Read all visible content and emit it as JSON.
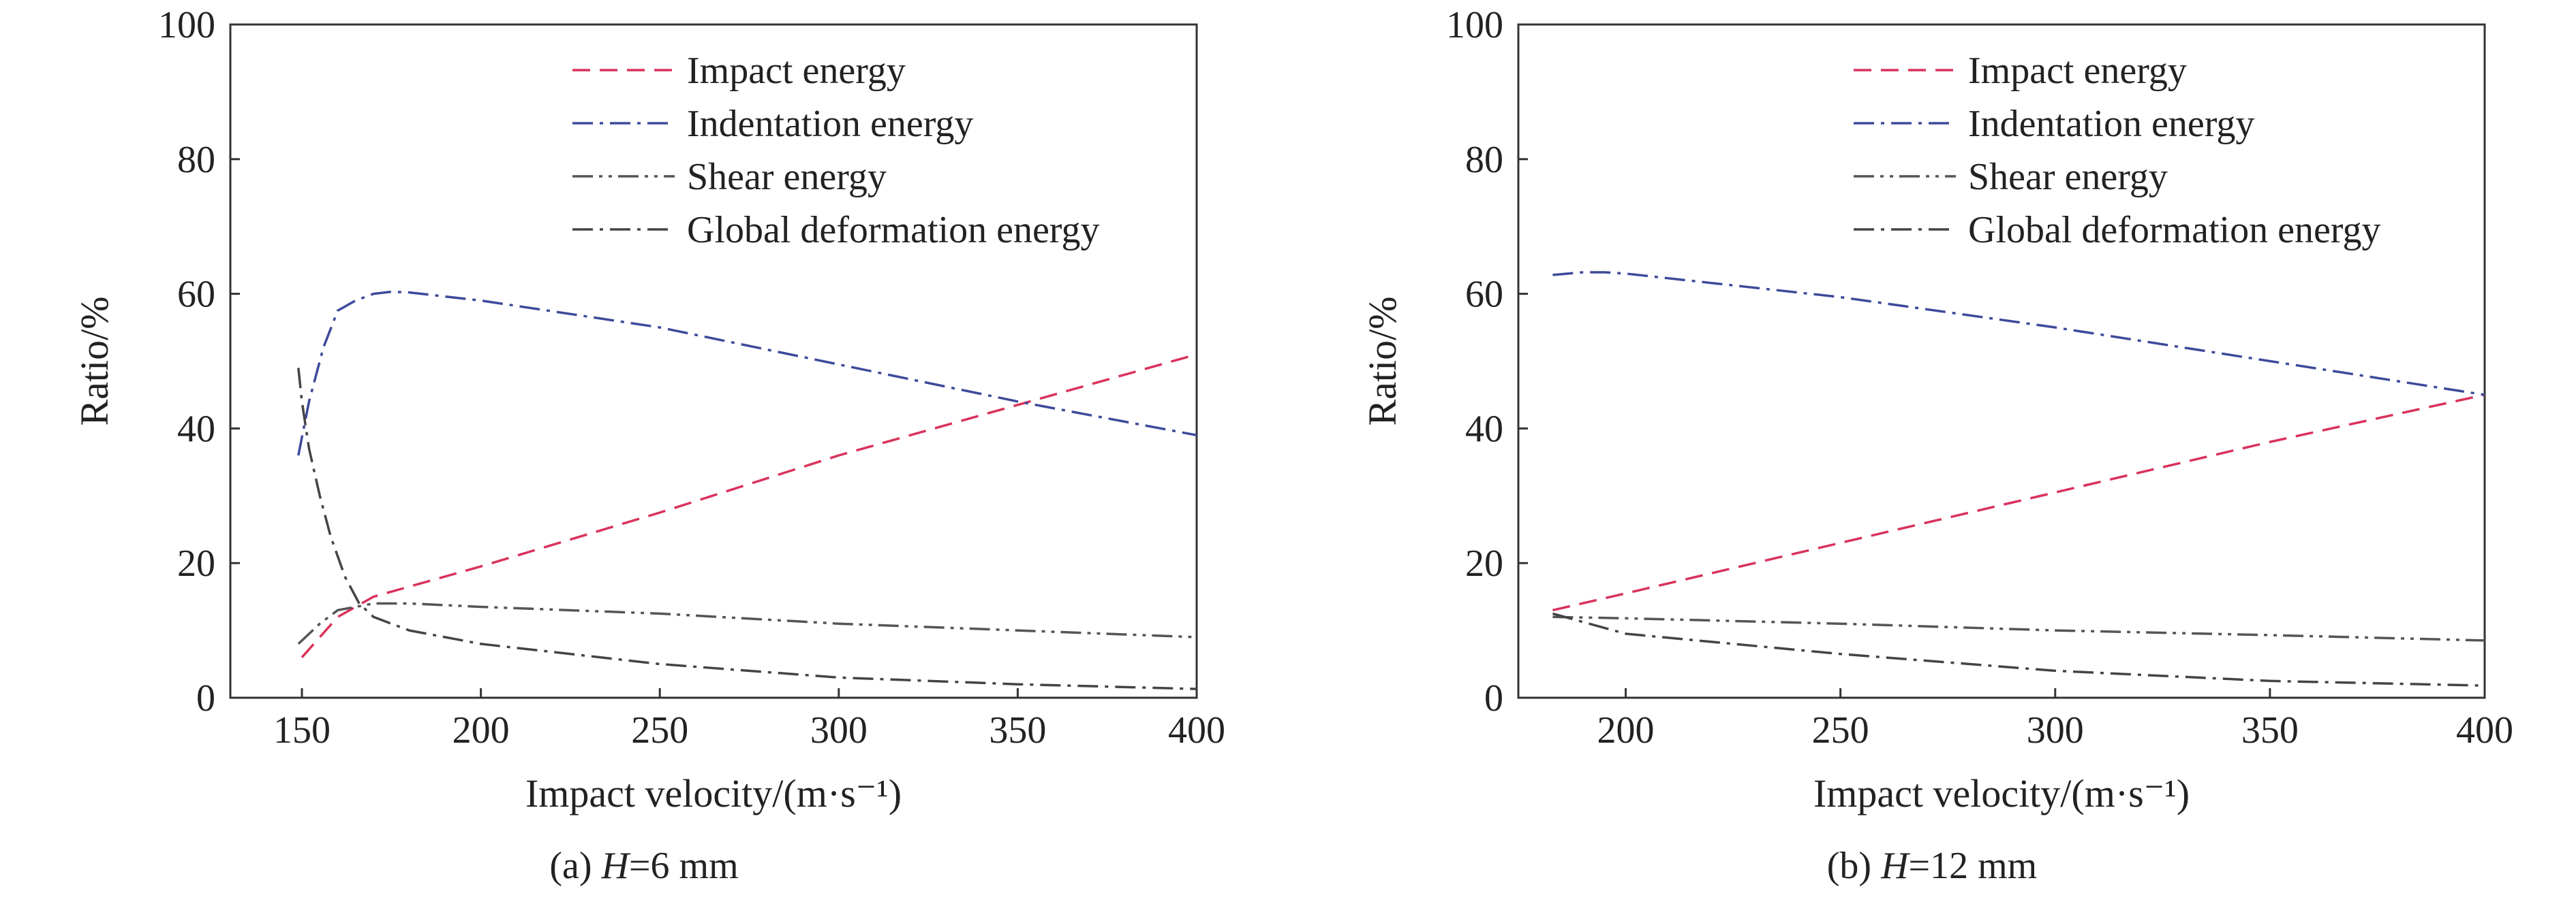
{
  "chart_data": [
    {
      "type": "line",
      "caption_prefix": "(a) ",
      "caption_var": "H",
      "caption_rest": "=6 mm",
      "xlabel": "Impact velocity/(m·s⁻¹)",
      "ylabel": "Ratio/%",
      "xlim": [
        130,
        400
      ],
      "ylim": [
        0,
        100
      ],
      "xticks": [
        150,
        200,
        250,
        300,
        350,
        400
      ],
      "yticks": [
        0,
        20,
        40,
        60,
        80,
        100
      ],
      "grid": false,
      "legend_position": "top-right",
      "series": [
        {
          "name": "Impact energy",
          "color": "#d9325a",
          "dash": "dashed",
          "x": [
            150,
            160,
            170,
            200,
            250,
            300,
            350,
            400
          ],
          "y": [
            6,
            12,
            15,
            19.5,
            27.5,
            36,
            43.5,
            51
          ]
        },
        {
          "name": "Indentation energy",
          "color": "#3d4a9a",
          "dash": "dashdot",
          "x": [
            149,
            152,
            156,
            160,
            165,
            170,
            175,
            180,
            200,
            250,
            300,
            350,
            400
          ],
          "y": [
            36,
            44,
            52,
            57.5,
            59,
            60,
            60.3,
            60.2,
            59,
            55,
            49.5,
            44,
            39
          ]
        },
        {
          "name": "Shear energy",
          "color": "#555555",
          "dash": "dashdotdot",
          "x": [
            149,
            155,
            160,
            165,
            170,
            180,
            200,
            250,
            300,
            350,
            400
          ],
          "y": [
            8,
            11,
            13,
            13.5,
            14,
            14,
            13.5,
            12.5,
            11,
            10,
            9
          ]
        },
        {
          "name": "Global deformation energy",
          "color": "#444444",
          "dash": "dashdot",
          "x": [
            149,
            150,
            152,
            155,
            158,
            162,
            166,
            170,
            180,
            200,
            250,
            300,
            350,
            400
          ],
          "y": [
            49,
            44,
            37,
            30,
            24,
            18,
            14,
            12,
            10,
            8,
            5,
            3,
            2,
            1.3
          ]
        }
      ]
    },
    {
      "type": "line",
      "caption_prefix": "(b) ",
      "caption_var": "H",
      "caption_rest": "=12 mm",
      "xlabel": "Impact velocity/(m·s⁻¹)",
      "ylabel": "Ratio/%",
      "xlim": [
        175,
        400
      ],
      "ylim": [
        0,
        100
      ],
      "xticks": [
        200,
        250,
        300,
        350,
        400
      ],
      "yticks": [
        0,
        20,
        40,
        60,
        80,
        100
      ],
      "grid": false,
      "legend_position": "top-right",
      "series": [
        {
          "name": "Impact energy",
          "color": "#d9325a",
          "dash": "dashed",
          "x": [
            183,
            200,
            250,
            300,
            350,
            400
          ],
          "y": [
            13,
            15.5,
            23,
            30.5,
            38,
            45
          ]
        },
        {
          "name": "Indentation energy",
          "color": "#3d4a9a",
          "dash": "dashdot",
          "x": [
            183,
            190,
            195,
            200,
            250,
            300,
            350,
            400
          ],
          "y": [
            62.8,
            63.2,
            63.2,
            63,
            59.5,
            55,
            50,
            45
          ]
        },
        {
          "name": "Shear energy",
          "color": "#555555",
          "dash": "dashdotdot",
          "x": [
            183,
            200,
            250,
            300,
            350,
            400
          ],
          "y": [
            12,
            11.8,
            11,
            10,
            9.3,
            8.5
          ]
        },
        {
          "name": "Global deformation energy",
          "color": "#444444",
          "dash": "dashdot",
          "x": [
            183,
            200,
            250,
            300,
            350,
            400
          ],
          "y": [
            12.5,
            9.5,
            6.5,
            4,
            2.5,
            1.8
          ]
        }
      ]
    }
  ]
}
